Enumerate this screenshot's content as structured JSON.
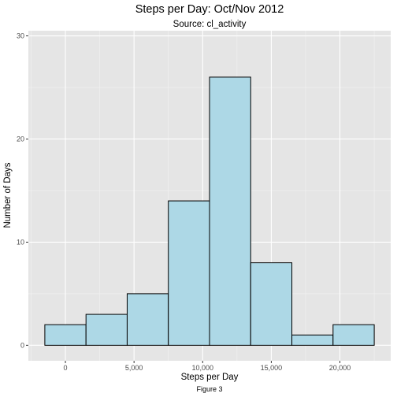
{
  "chart_data": {
    "type": "bar",
    "title": "Steps per Day: Oct/Nov 2012",
    "subtitle": "Source: cl_activity",
    "xlabel": "Steps per Day",
    "ylabel": "Number of Days",
    "caption": "Figure 3",
    "bins": [
      {
        "x0": -1500,
        "x1": 1500,
        "count": 2
      },
      {
        "x0": 1500,
        "x1": 4500,
        "count": 3
      },
      {
        "x0": 4500,
        "x1": 7500,
        "count": 5
      },
      {
        "x0": 7500,
        "x1": 10500,
        "count": 14
      },
      {
        "x0": 10500,
        "x1": 13500,
        "count": 26
      },
      {
        "x0": 13500,
        "x1": 16500,
        "count": 8
      },
      {
        "x0": 16500,
        "x1": 19500,
        "count": 1
      },
      {
        "x0": 19500,
        "x1": 22500,
        "count": 2
      }
    ],
    "xlim": [
      -2700,
      23700
    ],
    "ylim": [
      -1.5,
      30.5
    ],
    "x_ticks": [
      {
        "value": 0,
        "label": "0"
      },
      {
        "value": 5000,
        "label": "5,000"
      },
      {
        "value": 10000,
        "label": "10,000"
      },
      {
        "value": 15000,
        "label": "15,000"
      },
      {
        "value": 20000,
        "label": "20,000"
      }
    ],
    "y_ticks": [
      {
        "value": 0,
        "label": "0"
      },
      {
        "value": 10,
        "label": "10"
      },
      {
        "value": 20,
        "label": "20"
      },
      {
        "value": 30,
        "label": "30"
      }
    ],
    "grid": true,
    "colors": {
      "panel_background": "#e5e5e5",
      "grid_major": "#ffffff",
      "grid_minor": "#f2f2f2",
      "bar_fill": "#add8e6",
      "bar_stroke": "#000000",
      "tick_label": "#4d4d4d"
    }
  }
}
